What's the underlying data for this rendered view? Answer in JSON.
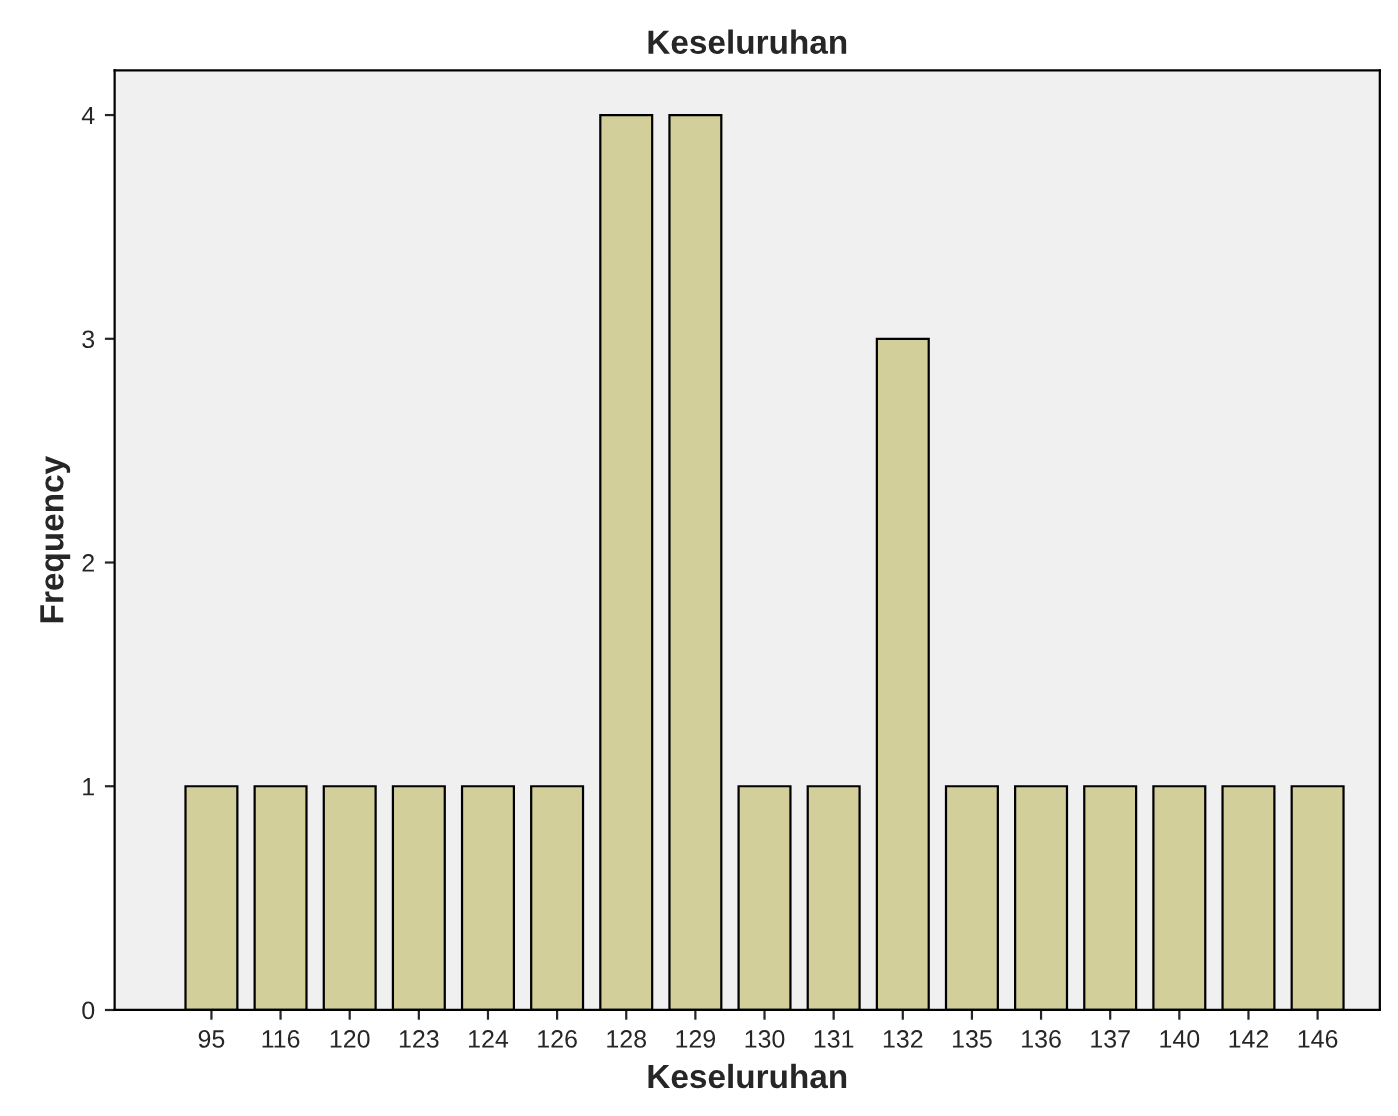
{
  "chart_data": {
    "type": "bar",
    "title": "Keseluruhan",
    "xlabel": "Keseluruhan",
    "ylabel": "Frequency",
    "categories": [
      "95",
      "116",
      "120",
      "123",
      "124",
      "126",
      "128",
      "129",
      "130",
      "131",
      "132",
      "135",
      "136",
      "137",
      "140",
      "142",
      "146"
    ],
    "values": [
      1,
      1,
      1,
      1,
      1,
      1,
      4,
      4,
      1,
      1,
      3,
      1,
      1,
      1,
      1,
      1,
      1
    ],
    "color": "#d3cf9a",
    "ylim": [
      0,
      4.2
    ],
    "yticks": [
      0,
      1,
      2,
      3,
      4
    ],
    "grid": false
  }
}
